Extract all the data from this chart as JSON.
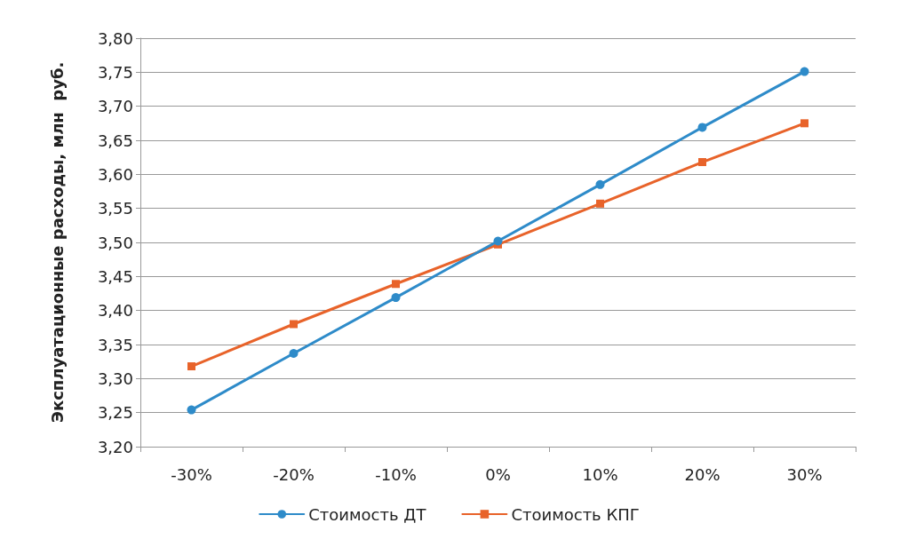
{
  "chart_data": {
    "type": "line",
    "ylabel": "Эксплуатационные расходы, млн  руб.",
    "categories": [
      "-30%",
      "-20%",
      "-10%",
      "0%",
      "10%",
      "20%",
      "30%"
    ],
    "series": [
      {
        "name": "Стоимость ДТ",
        "color": "#2e8bc9",
        "marker": "circle",
        "values": [
          3.254,
          3.337,
          3.419,
          3.502,
          3.585,
          3.669,
          3.751
        ]
      },
      {
        "name": "Стоимость КПГ",
        "color": "#e8632a",
        "marker": "square",
        "values": [
          3.318,
          3.38,
          3.439,
          3.497,
          3.557,
          3.618,
          3.675
        ]
      }
    ],
    "ylim": [
      3.2,
      3.8
    ],
    "yticks": [
      {
        "value": 3.2,
        "label": "3,20"
      },
      {
        "value": 3.25,
        "label": "3,25"
      },
      {
        "value": 3.3,
        "label": "3,30"
      },
      {
        "value": 3.35,
        "label": "3,35"
      },
      {
        "value": 3.4,
        "label": "3,40"
      },
      {
        "value": 3.45,
        "label": "3,45"
      },
      {
        "value": 3.5,
        "label": "3,50"
      },
      {
        "value": 3.55,
        "label": "3,55"
      },
      {
        "value": 3.6,
        "label": "3,60"
      },
      {
        "value": 3.65,
        "label": "3,65"
      },
      {
        "value": 3.7,
        "label": "3,70"
      },
      {
        "value": 3.75,
        "label": "3,75"
      },
      {
        "value": 3.8,
        "label": "3,80"
      }
    ],
    "grid": "y",
    "legend": "bottom",
    "line_style": "solid"
  }
}
